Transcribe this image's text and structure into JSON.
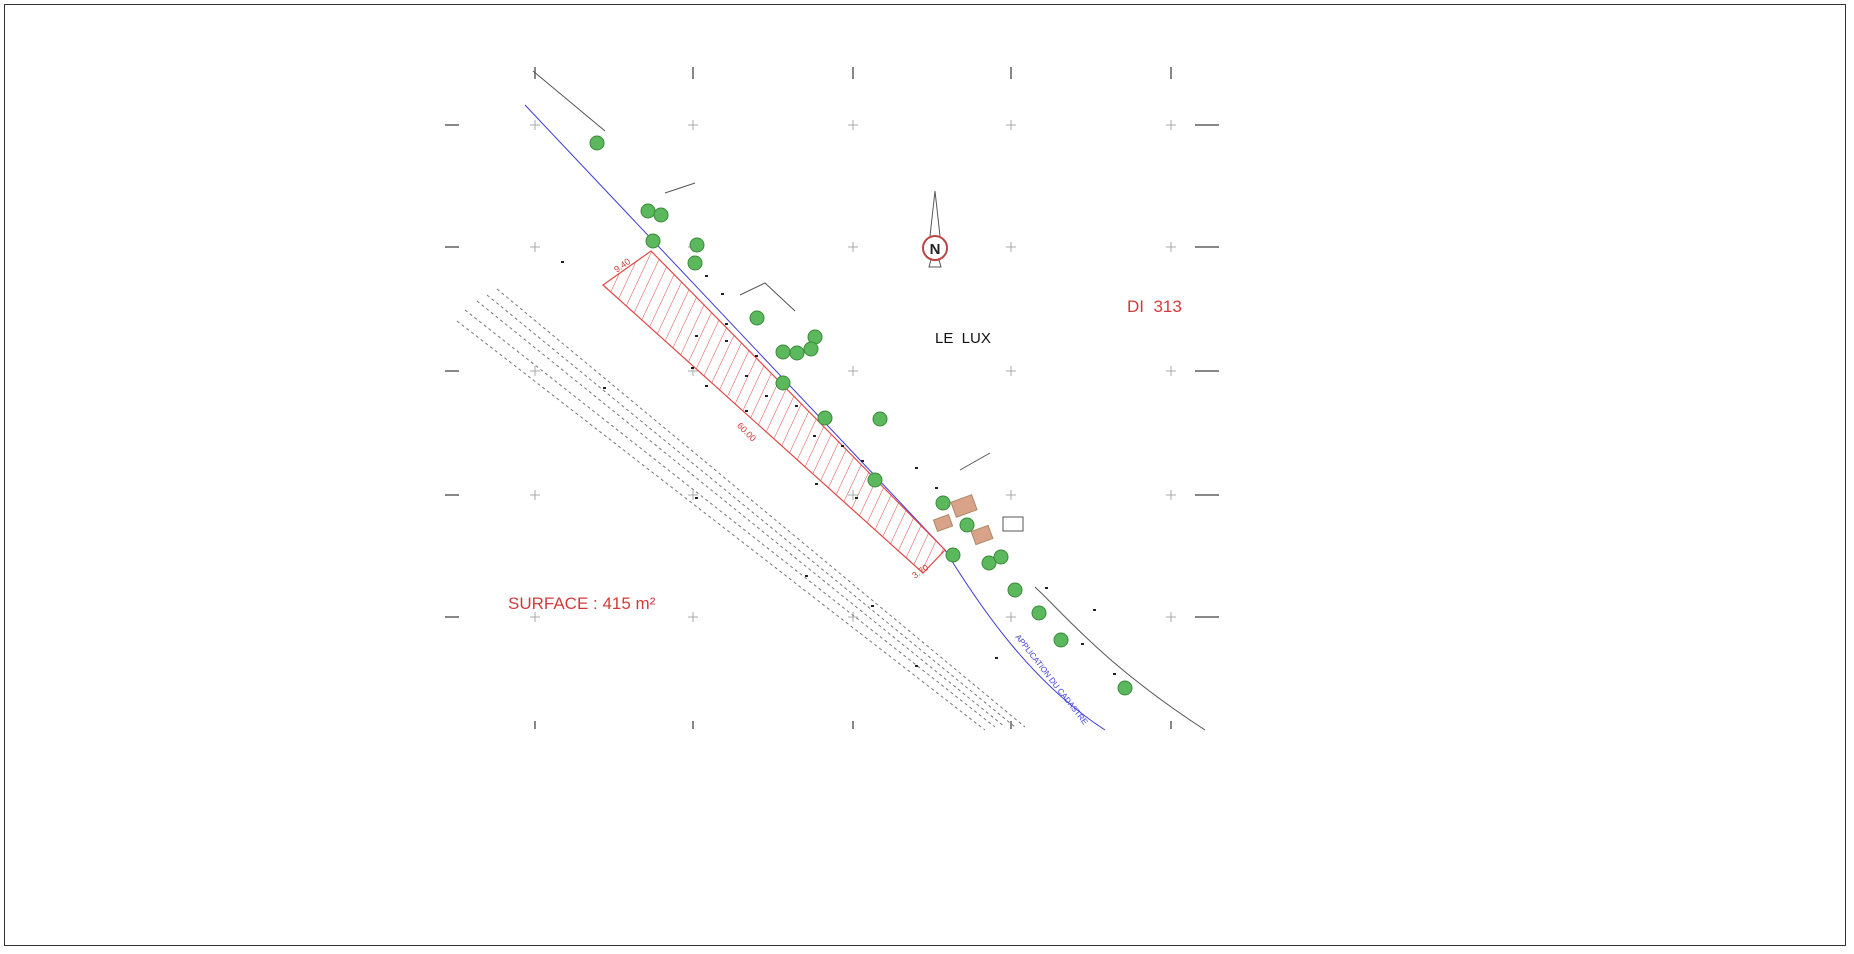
{
  "plan": {
    "parcel_id": "DI  313",
    "locality": "LE  LUX",
    "surface_label": "SURFACE : 415 m²",
    "dimensions": {
      "top": "9.40",
      "long": "60.00",
      "bottom": "3.70"
    },
    "cadastre_note": "APPLICATION DU CADASTRE",
    "north_label": "N"
  },
  "colors": {
    "hatch": "#e04848",
    "label": "#d33b3b",
    "tree": "#5cb85c",
    "cadastre_line": "#3b3bd8",
    "building": "#d9a38a"
  }
}
